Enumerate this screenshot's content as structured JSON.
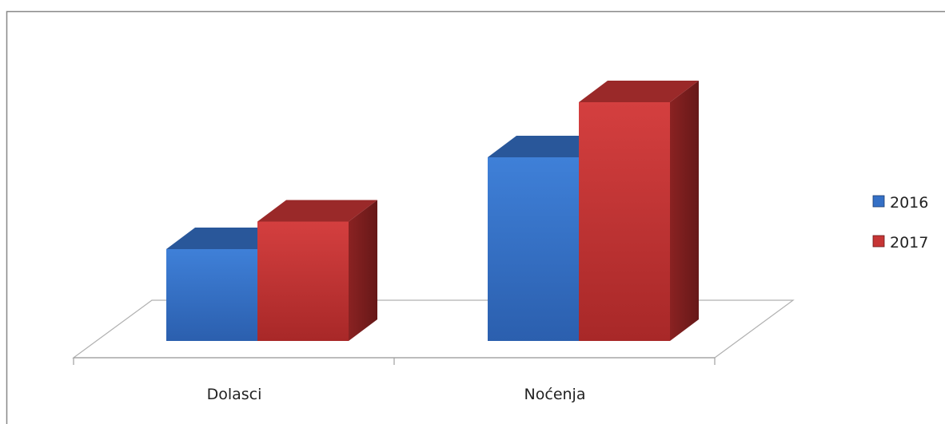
{
  "chart_data": {
    "type": "bar",
    "style": "3d-clustered-column",
    "categories": [
      "Dolasci",
      "Noćenja"
    ],
    "series": [
      {
        "name": "2016",
        "values": [
          1.0,
          2.0
        ],
        "color": "#3470c6"
      },
      {
        "name": "2017",
        "values": [
          1.3,
          2.6
        ],
        "color": "#c63535"
      }
    ],
    "ylim": [
      0,
      3
    ],
    "grid": false,
    "legend_position": "right"
  }
}
